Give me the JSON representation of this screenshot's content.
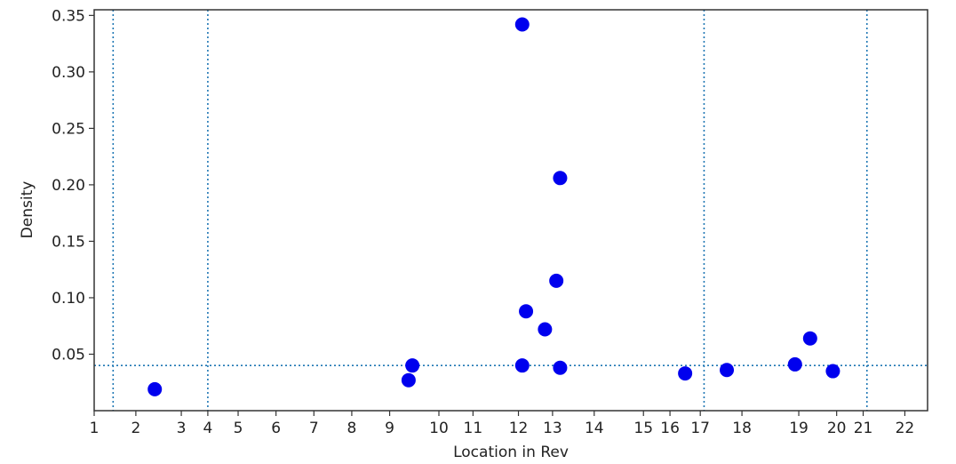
{
  "chart_data": {
    "type": "scatter",
    "title": "",
    "xlabel": "Location in Rev",
    "ylabel": "Density",
    "xlim": [
      1,
      23
    ],
    "ylim": [
      0.0,
      0.355
    ],
    "grid": false,
    "x_ticks": [
      {
        "label": "1",
        "value": 1
      },
      {
        "label": "2",
        "value": 2.1
      },
      {
        "label": "3",
        "value": 3.3
      },
      {
        "label": "4",
        "value": 4.0
      },
      {
        "label": "5",
        "value": 4.8
      },
      {
        "label": "6",
        "value": 5.8
      },
      {
        "label": "7",
        "value": 6.8
      },
      {
        "label": "8",
        "value": 7.8
      },
      {
        "label": "9",
        "value": 8.8
      },
      {
        "label": "10",
        "value": 10.1
      },
      {
        "label": "11",
        "value": 11.0
      },
      {
        "label": "12",
        "value": 12.2
      },
      {
        "label": "13",
        "value": 13.1
      },
      {
        "label": "14",
        "value": 14.2
      },
      {
        "label": "15",
        "value": 15.5
      },
      {
        "label": "16",
        "value": 16.2
      },
      {
        "label": "17",
        "value": 17.0
      },
      {
        "label": "18",
        "value": 18.1
      },
      {
        "label": "19",
        "value": 19.6
      },
      {
        "label": "20",
        "value": 20.6
      },
      {
        "label": "21",
        "value": 21.3
      },
      {
        "label": "22",
        "value": 22.4
      }
    ],
    "y_ticks": [
      "0.05",
      "0.10",
      "0.15",
      "0.20",
      "0.25",
      "0.30",
      "0.35"
    ],
    "y_tick_values": [
      0.05,
      0.1,
      0.15,
      0.2,
      0.25,
      0.3,
      0.35
    ],
    "reference_lines": {
      "vertical_x": [
        1.5,
        4.0,
        17.1,
        21.4
      ],
      "horizontal_y": 0.04,
      "color": "#1f77b4",
      "style": "dotted"
    },
    "series": [
      {
        "color": "#0000ee",
        "points": [
          {
            "x": 2.6,
            "y": 0.019
          },
          {
            "x": 9.3,
            "y": 0.027
          },
          {
            "x": 9.4,
            "y": 0.04
          },
          {
            "x": 12.3,
            "y": 0.342
          },
          {
            "x": 12.4,
            "y": 0.088
          },
          {
            "x": 12.3,
            "y": 0.04
          },
          {
            "x": 12.9,
            "y": 0.072
          },
          {
            "x": 13.3,
            "y": 0.206
          },
          {
            "x": 13.2,
            "y": 0.115
          },
          {
            "x": 13.3,
            "y": 0.038
          },
          {
            "x": 16.6,
            "y": 0.033
          },
          {
            "x": 17.7,
            "y": 0.036
          },
          {
            "x": 19.5,
            "y": 0.041
          },
          {
            "x": 19.9,
            "y": 0.064
          },
          {
            "x": 20.5,
            "y": 0.035
          }
        ]
      }
    ]
  }
}
